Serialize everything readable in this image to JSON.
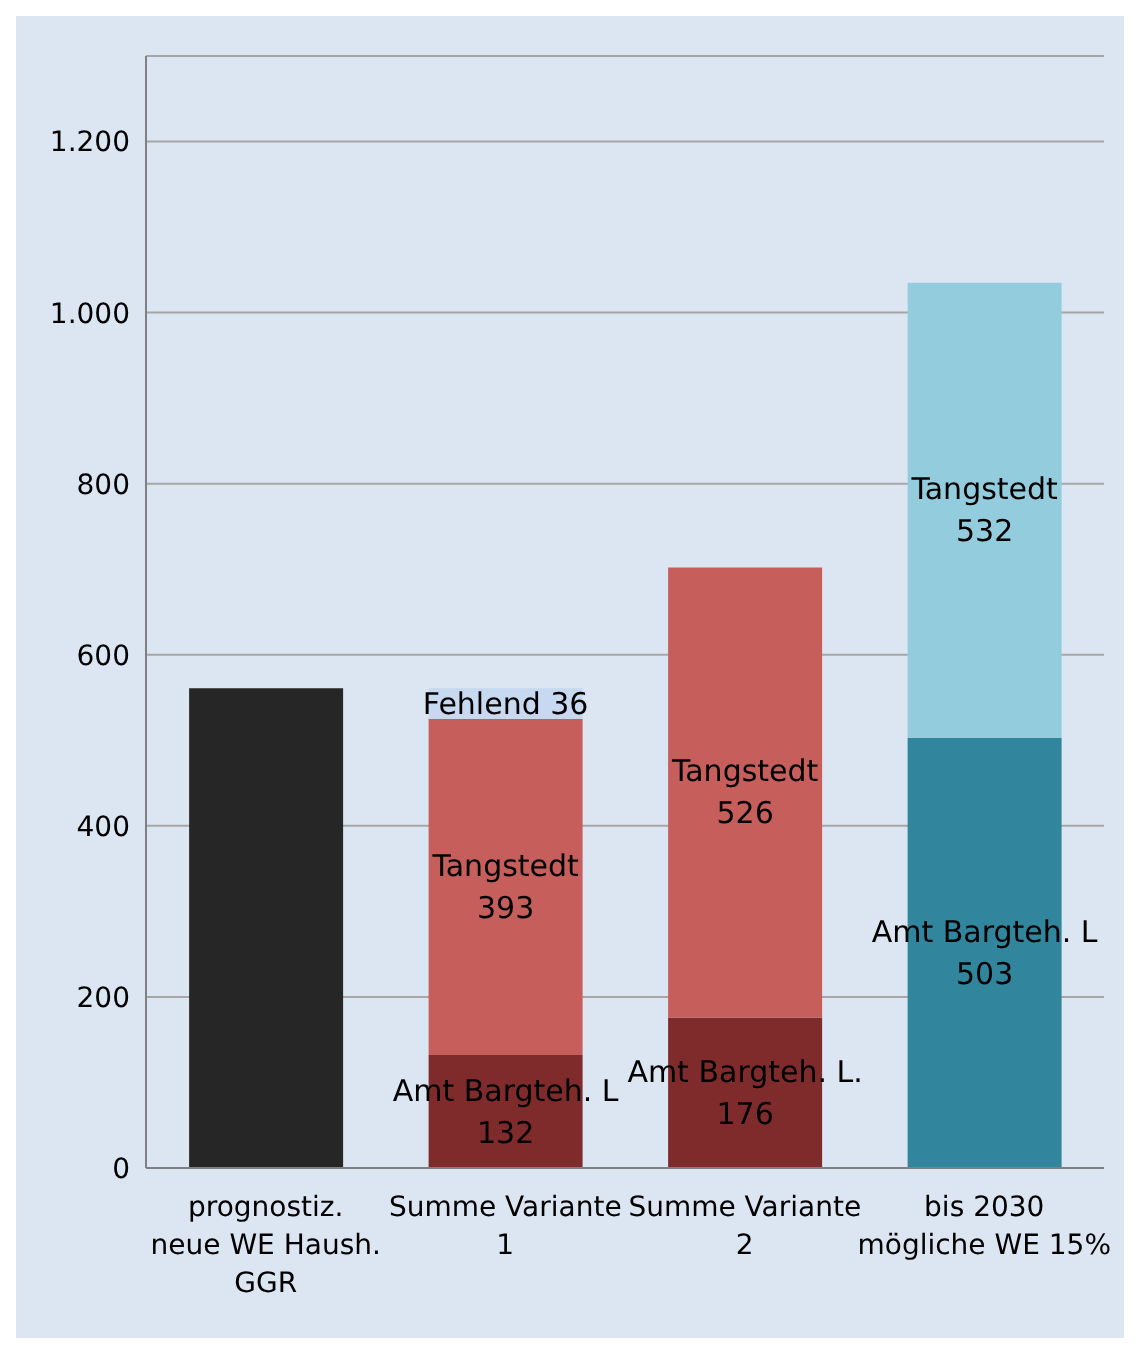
{
  "chart_data": {
    "type": "bar",
    "stacked": true,
    "categories": [
      "prognostiz. neue WE Haush. GGR",
      "Summe Variante 1",
      "Summe Variante 2",
      "bis 2030 mögliche WE 15%"
    ],
    "series": [
      {
        "values": [
          561,
          132,
          176,
          503
        ],
        "colors": [
          "#262626",
          "#7f2b2b",
          "#7f2b2b",
          "#31859c"
        ],
        "value_labels": [
          null,
          "Amt Bargteh. L\n132",
          "Amt Bargteh. L.\n176",
          "Amt Bargteh. L\n503"
        ]
      },
      {
        "values": [
          null,
          393,
          526,
          532
        ],
        "colors": [
          null,
          "#c65e5b",
          "#c65e5b",
          "#93cddd"
        ],
        "value_labels": [
          null,
          "Tangstedt\n393",
          "Tangstedt\n526",
          "Tangstedt\n532"
        ]
      },
      {
        "values": [
          null,
          36,
          null,
          null
        ],
        "colors": [
          null,
          "#c6d9f1",
          null,
          null
        ],
        "value_labels": [
          null,
          "Fehlend 36",
          null,
          null
        ]
      }
    ],
    "ylim": [
      0,
      1300
    ],
    "yticks": [
      0,
      200,
      400,
      600,
      800,
      {
        "value": 1000,
        "label": "1.000"
      },
      {
        "value": 1200,
        "label": "1.200"
      }
    ],
    "grid": "y"
  }
}
